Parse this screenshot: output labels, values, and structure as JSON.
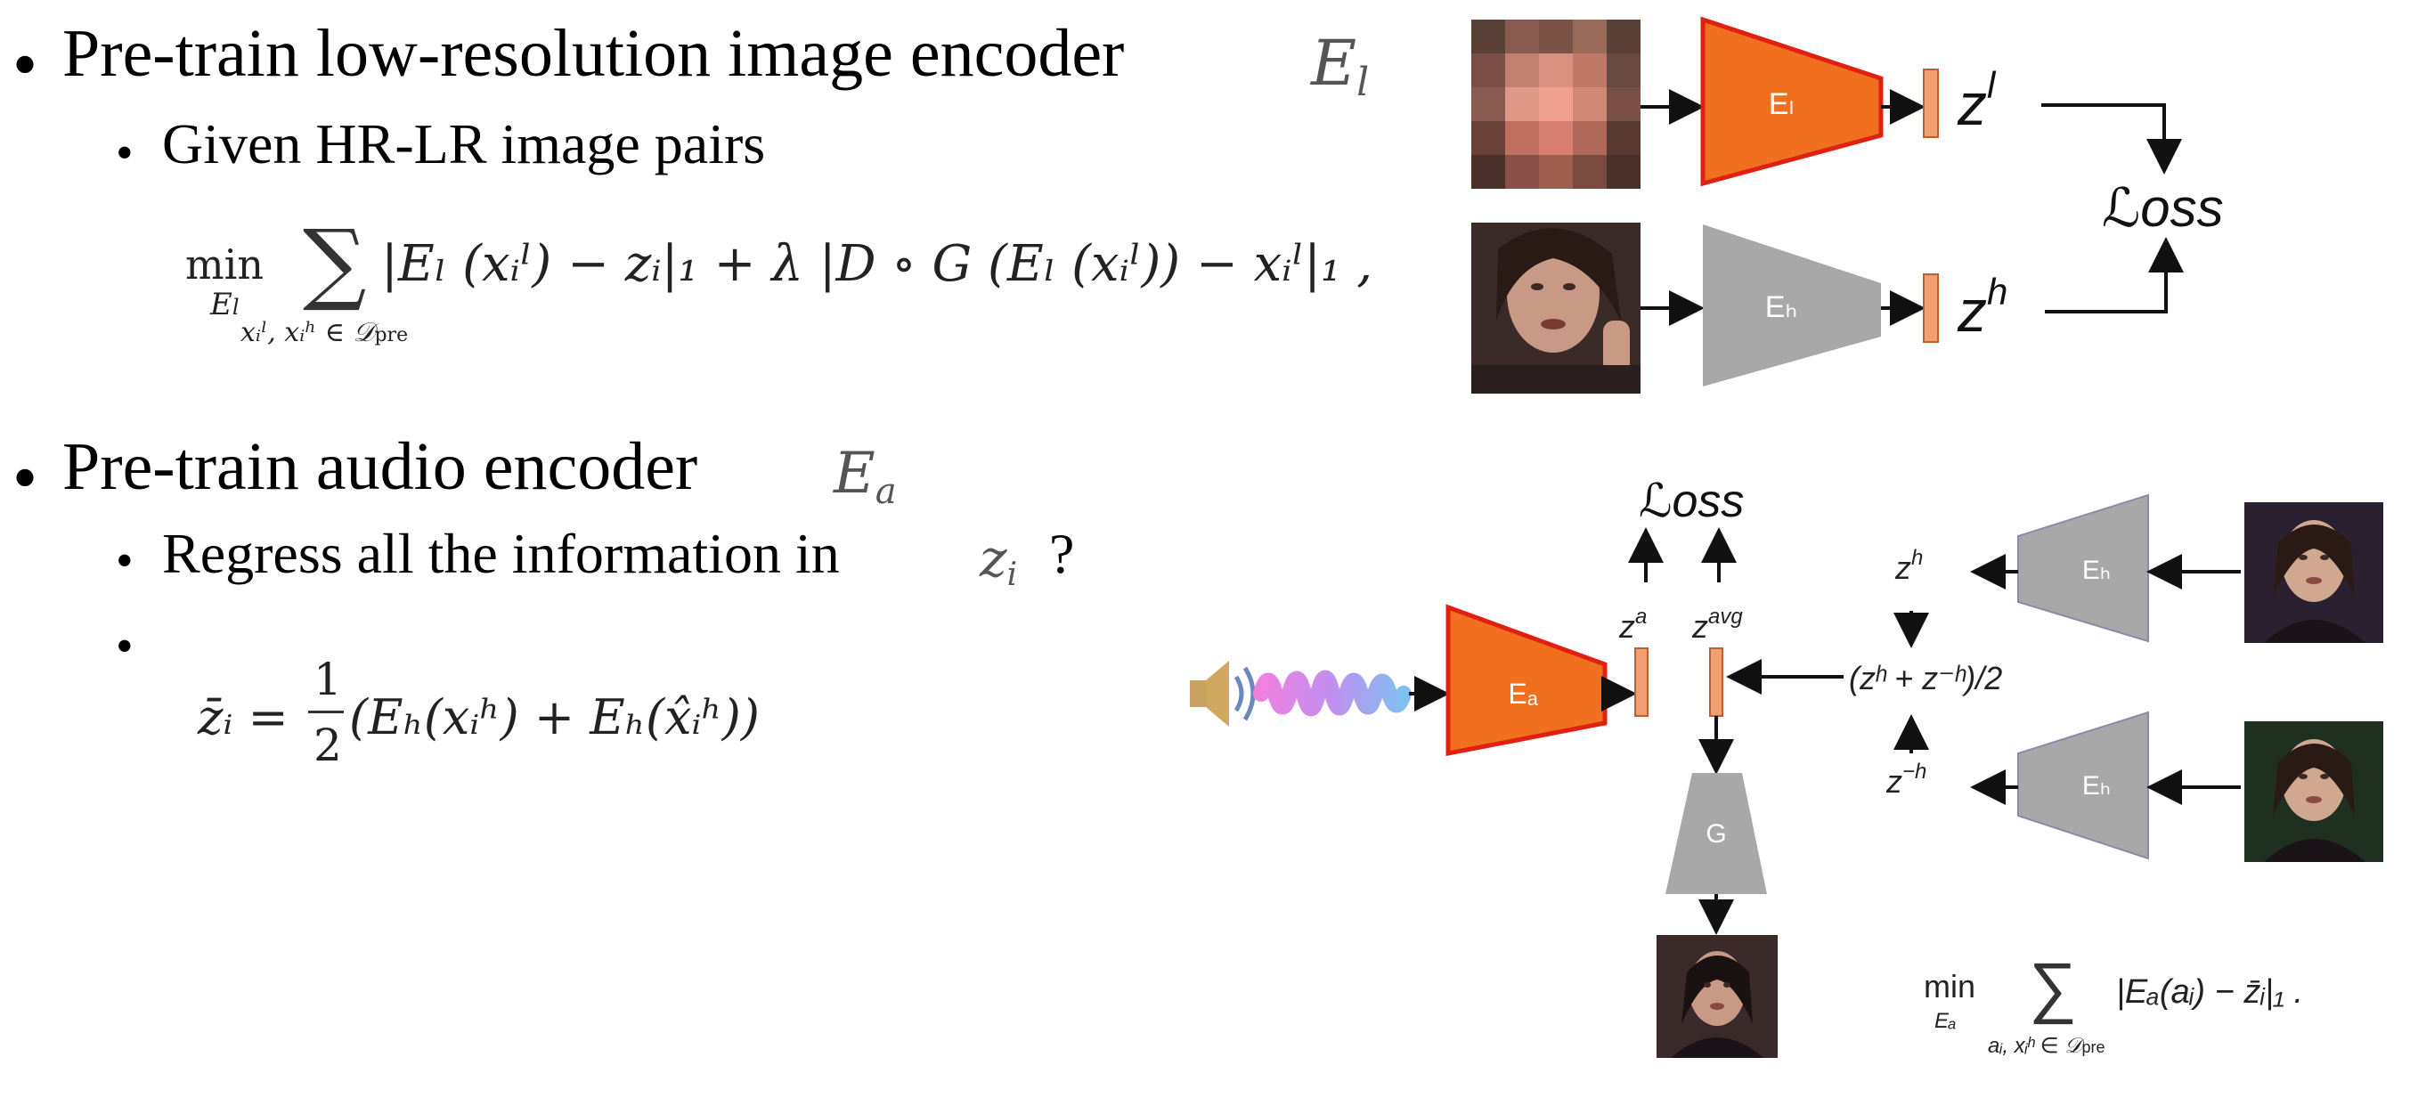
{
  "section1": {
    "bullet": "Pre-train low-resolution image encoder",
    "bullet_var": "E",
    "bullet_var_sub": "l",
    "sub1": "Given HR-LR image pairs",
    "eq_min": "min",
    "eq_min_sub": "E",
    "eq_min_sub_sub": "l",
    "eq_sum_sub": "xᵢˡ, xᵢʰ ∈ 𝒟",
    "eq_sum_sub_pre": "pre",
    "eq_body": "|Eₗ (xᵢˡ) − zᵢ|₁ + λ |D ∘ G (Eₗ (xᵢˡ)) − xᵢˡ|₁ ,"
  },
  "section2": {
    "bullet": "Pre-train audio encoder",
    "bullet_var": "E",
    "bullet_var_sub": "a",
    "sub1": "Regress all the information in",
    "sub1_var": "z",
    "sub1_var_sub": "i",
    "sub1_end": "?",
    "eq_lhs": "z̄ᵢ =",
    "eq_num": "1",
    "eq_den": "2",
    "eq_rhs": "(Eₕ(xᵢʰ) + Eₕ(x̂ᵢʰ))"
  },
  "diagram_top": {
    "encoder_low": "Eₗ",
    "encoder_high": "Eₕ",
    "latent_low": "z",
    "latent_low_sup": "l",
    "latent_high": "z",
    "latent_high_sup": "h",
    "loss": "ℒoss"
  },
  "diagram_bottom": {
    "loss": "ℒoss",
    "encoder_audio": "Eₐ",
    "generator": "G",
    "encoder_high_1": "Eₕ",
    "encoder_high_2": "Eₕ",
    "z_a": "z",
    "z_a_sup": "a",
    "z_avg": "z",
    "z_avg_sup": "avg",
    "z_h": "z",
    "z_h_sup": "h",
    "z_minus_h": "z",
    "z_minus_h_sup": "−h",
    "avg_formula": "(zʰ + z⁻ʰ)/2",
    "eq_min": "min",
    "eq_min_sub": "Eₐ",
    "eq_sum_sub": "aᵢ, xᵢʰ ∈ 𝒟",
    "eq_sum_sub_pre": "pre",
    "eq_body": "|Eₐ(aᵢ) − z̄ᵢ|₁ ."
  },
  "colors": {
    "orange": "#f07020",
    "red": "#e02010",
    "gray": "#a8a8a8",
    "latent": "#f0a070"
  },
  "icons": [
    "speaker-icon",
    "waveform-icon"
  ]
}
